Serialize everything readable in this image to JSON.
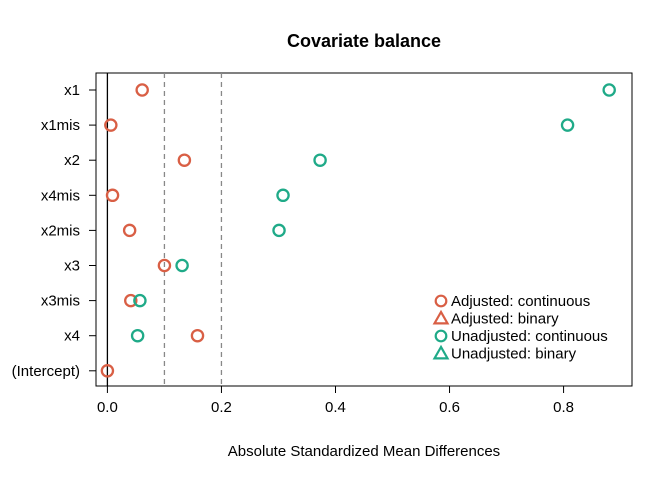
{
  "chart_data": {
    "type": "scatter",
    "title": "Covariate balance",
    "xlabel": "Absolute Standardized Mean Differences",
    "ylabel": "",
    "xlim": [
      -0.02,
      0.92
    ],
    "x_ticks": [
      0.0,
      0.2,
      0.4,
      0.6,
      0.8
    ],
    "x_tick_labels": [
      "0.0",
      "0.2",
      "0.4",
      "0.6",
      "0.8"
    ],
    "categories": [
      "x1",
      "x1mis",
      "x2",
      "x4mis",
      "x2mis",
      "x3",
      "x3mis",
      "x4",
      "(Intercept)"
    ],
    "reference_lines": [
      {
        "x": 0.0,
        "style": "solid"
      },
      {
        "x": 0.1,
        "style": "dashed"
      },
      {
        "x": 0.2,
        "style": "dashed"
      }
    ],
    "series": [
      {
        "name": "Adjusted: continuous",
        "color": "#D95F45",
        "marker": "circle",
        "values": [
          0.061,
          0.006,
          0.135,
          0.009,
          0.039,
          0.1,
          0.041,
          0.158,
          0.0
        ]
      },
      {
        "name": "Unadjusted: continuous",
        "color": "#1FAA88",
        "marker": "circle",
        "values": [
          0.88,
          0.807,
          0.373,
          0.308,
          0.301,
          0.131,
          0.057,
          0.053,
          null
        ]
      }
    ],
    "legend": {
      "position": "bottom-right",
      "entries": [
        {
          "label": "Adjusted: continuous",
          "color": "#D95F45",
          "marker": "circle"
        },
        {
          "label": "Adjusted: binary",
          "color": "#D95F45",
          "marker": "triangle"
        },
        {
          "label": "Unadjusted: continuous",
          "color": "#1FAA88",
          "marker": "circle"
        },
        {
          "label": "Unadjusted: binary",
          "color": "#1FAA88",
          "marker": "triangle"
        }
      ]
    },
    "grid": false
  }
}
